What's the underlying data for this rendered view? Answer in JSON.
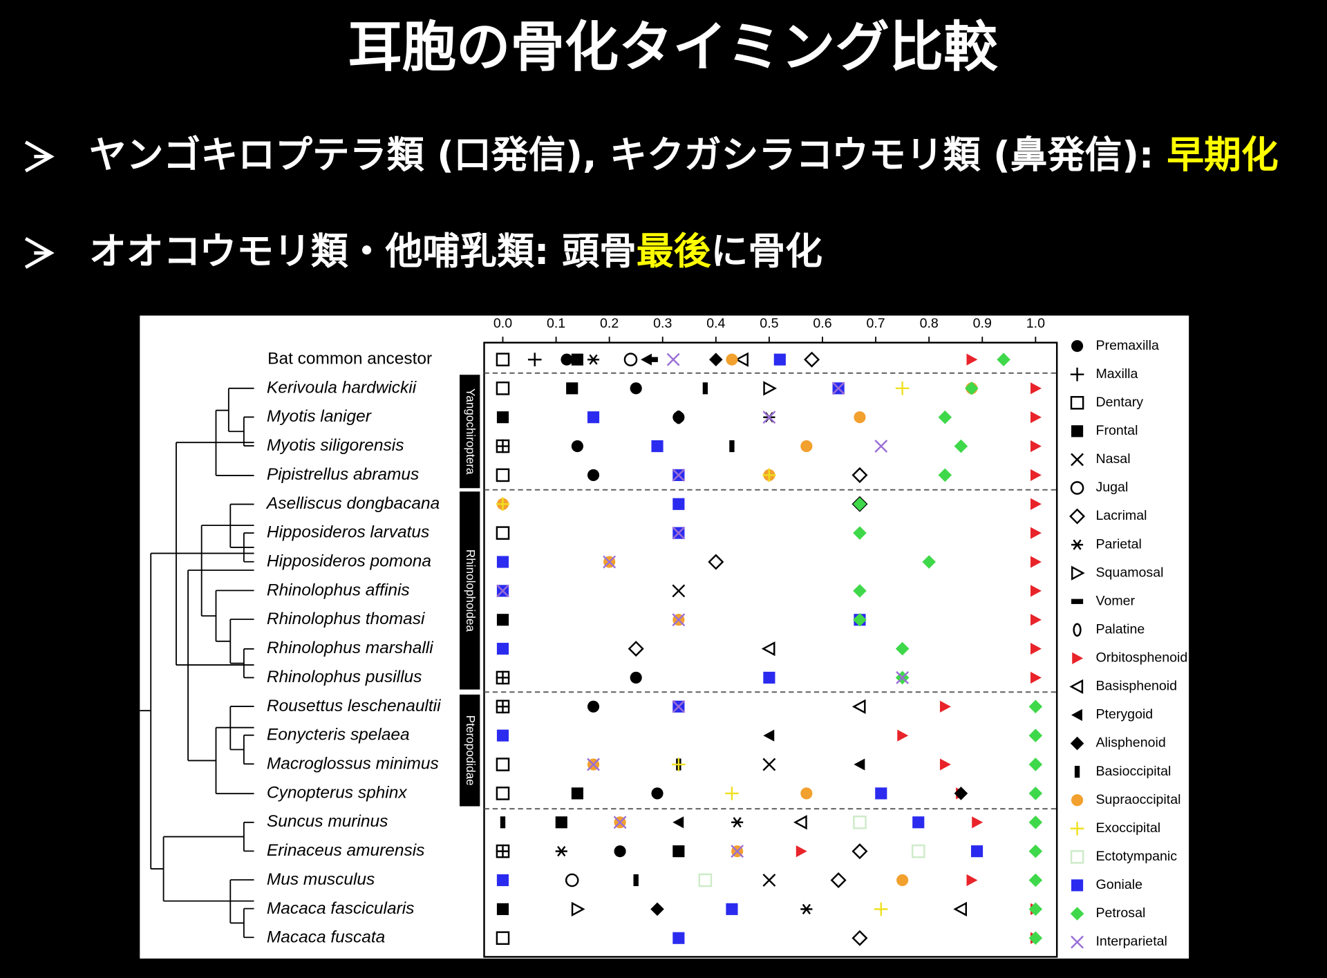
{
  "slide": {
    "title": "耳胞の骨化タイミング比較",
    "bullets": [
      [
        "ヤンゴキロプテラ類 (口発信), キクガシラコウモリ類 (鼻発信): ",
        "早期化"
      ],
      [
        "オオコウモリ類・他哺乳類: 頭骨",
        "最後",
        "に骨化"
      ]
    ]
  },
  "chart_data": {
    "type": "ossification-sequence",
    "categories": [
      "Bat common ancestor",
      "Kerivoula hardwickii",
      "Myotis laniger",
      "Myotis siligorensis",
      "Pipistrellus abramus",
      "Aselliscus dongbacana",
      "Hipposideros larvatus",
      "Hipposideros pomona",
      "Rhinolophus affinis",
      "Rhinolophus thomasi",
      "Rhinolophus marshalli",
      "Rhinolophus pusillus",
      "Rousettus leschenaultii",
      "Eonycteris spelaea",
      "Macroglossus minimus",
      "Cynopterus sphinx",
      "Suncus murinus",
      "Erinaceus amurensis",
      "Mus musculus",
      "Macaca fascicularis",
      "Macaca fuscata"
    ],
    "clades": [
      "Yangochiroptera",
      "Rhinolophoidea",
      "Pteropodidae"
    ],
    "xlim": [
      -0.035,
      1.04
    ],
    "xticks": [
      {
        "value": 0,
        "label": "0.0"
      },
      0.1,
      0.2,
      0.3,
      0.4,
      0.5,
      0.6,
      0.7,
      0.8,
      0.9,
      {
        "value": 1,
        "label": "1.0"
      }
    ],
    "series": [
      {
        "name": "Premaxilla",
        "marker": "circle",
        "color": "#000000",
        "values": [
          0.12,
          0.25,
          0.33,
          0.14,
          0.17,
          null,
          null,
          null,
          null,
          null,
          null,
          0.25,
          0.17,
          null,
          null,
          0.29,
          null,
          0.22,
          null,
          null,
          null
        ]
      },
      {
        "name": "Maxilla",
        "marker": "plus",
        "color": "#000000",
        "values": [
          0.06,
          null,
          null,
          0,
          null,
          null,
          null,
          null,
          null,
          null,
          null,
          0,
          0,
          null,
          null,
          null,
          null,
          0,
          null,
          null,
          null
        ]
      },
      {
        "name": "Dentary",
        "marker": "square-open",
        "color": "#000000",
        "values": [
          0,
          0,
          null,
          0,
          0,
          null,
          0,
          null,
          null,
          null,
          null,
          0,
          0,
          null,
          0,
          0,
          null,
          0,
          null,
          null,
          0
        ]
      },
      {
        "name": "Frontal",
        "marker": "square",
        "color": "#000000",
        "values": [
          0.14,
          0.13,
          0,
          null,
          null,
          null,
          null,
          null,
          null,
          0,
          null,
          null,
          null,
          null,
          null,
          0.14,
          0.11,
          0.33,
          null,
          0,
          null
        ]
      },
      {
        "name": "Nasal",
        "marker": "cross",
        "color": "#000000",
        "values": [
          null,
          null,
          null,
          null,
          null,
          null,
          null,
          null,
          0.33,
          null,
          null,
          null,
          null,
          null,
          0.5,
          null,
          null,
          null,
          0.5,
          null,
          null
        ]
      },
      {
        "name": "Jugal",
        "marker": "circle-open",
        "color": "#000000",
        "values": [
          0.24,
          null,
          null,
          null,
          null,
          null,
          null,
          null,
          null,
          null,
          null,
          null,
          null,
          null,
          null,
          null,
          null,
          null,
          0.13,
          null,
          null
        ]
      },
      {
        "name": "Lacrimal",
        "marker": "diamond-open",
        "color": "#000000",
        "values": [
          0.58,
          null,
          null,
          null,
          0.67,
          0.67,
          null,
          0.4,
          null,
          null,
          0.25,
          null,
          null,
          null,
          null,
          null,
          null,
          0.67,
          0.63,
          null,
          0.67
        ]
      },
      {
        "name": "Parietal",
        "marker": "asterisk",
        "color": "#000000",
        "values": [
          0.17,
          null,
          0.5,
          null,
          null,
          null,
          null,
          null,
          null,
          null,
          null,
          null,
          null,
          null,
          null,
          null,
          0.44,
          0.11,
          0,
          0.57,
          null
        ]
      },
      {
        "name": "Squamosal",
        "marker": "triangle-right-open",
        "color": "#000000",
        "values": [
          null,
          0.5,
          null,
          null,
          null,
          null,
          null,
          null,
          null,
          null,
          null,
          null,
          null,
          null,
          null,
          null,
          null,
          null,
          null,
          0.14,
          null
        ]
      },
      {
        "name": "Vomer",
        "marker": "dash",
        "color": "#000000",
        "values": [
          0.28,
          null,
          null,
          null,
          null,
          null,
          null,
          null,
          null,
          null,
          null,
          null,
          null,
          null,
          null,
          null,
          null,
          null,
          null,
          null,
          null
        ]
      },
      {
        "name": "Palatine",
        "marker": "ellipse-open",
        "color": "#000000",
        "values": [
          null,
          null,
          0.33,
          null,
          null,
          null,
          null,
          null,
          null,
          null,
          null,
          null,
          null,
          null,
          null,
          null,
          null,
          null,
          null,
          null,
          null
        ]
      },
      {
        "name": "Orbitosphenoid",
        "marker": "triangle-right",
        "color": "#e8242a",
        "values": [
          0.88,
          1,
          1,
          1,
          1,
          1,
          1,
          1,
          1,
          1,
          1,
          1,
          0.83,
          0.75,
          0.83,
          0.86,
          0.89,
          0.56,
          0.88,
          1,
          1
        ]
      },
      {
        "name": "Basisphenoid",
        "marker": "triangle-left-open",
        "color": "#000000",
        "values": [
          0.45,
          null,
          null,
          null,
          null,
          null,
          null,
          null,
          null,
          null,
          0.5,
          null,
          0.67,
          null,
          null,
          null,
          0.56,
          null,
          null,
          0.86,
          null
        ]
      },
      {
        "name": "Pterygoid",
        "marker": "triangle-left",
        "color": "#000000",
        "values": [
          0.27,
          null,
          null,
          null,
          null,
          null,
          null,
          null,
          null,
          null,
          null,
          null,
          null,
          0.5,
          0.67,
          null,
          0.33,
          null,
          null,
          null,
          null
        ]
      },
      {
        "name": "Alisphenoid",
        "marker": "diamond",
        "color": "#000000",
        "values": [
          0.4,
          null,
          null,
          null,
          null,
          null,
          null,
          null,
          null,
          null,
          null,
          null,
          null,
          null,
          null,
          0.86,
          null,
          null,
          null,
          0.29,
          null
        ]
      },
      {
        "name": "Basioccipital",
        "marker": "bar",
        "color": "#000000",
        "values": [
          null,
          0.38,
          null,
          0.43,
          null,
          null,
          null,
          null,
          null,
          null,
          null,
          null,
          null,
          null,
          0.33,
          null,
          0,
          null,
          0.25,
          null,
          null
        ]
      },
      {
        "name": "Supraoccipital",
        "marker": "circle",
        "color": "#f2a02e",
        "values": [
          0.43,
          0.88,
          0.67,
          0.57,
          0.5,
          0,
          null,
          0.2,
          null,
          0.33,
          null,
          null,
          null,
          null,
          0.17,
          0.57,
          0.22,
          0.44,
          0.75,
          null,
          null
        ]
      },
      {
        "name": "Exoccipital",
        "marker": "plus",
        "color": "#f0e020",
        "values": [
          null,
          0.75,
          null,
          null,
          0.5,
          0,
          null,
          null,
          null,
          null,
          null,
          null,
          null,
          null,
          0.33,
          0.43,
          null,
          null,
          null,
          0.71,
          null
        ]
      },
      {
        "name": "Ectotympanic",
        "marker": "square-open",
        "color": "#cdebc8",
        "values": [
          null,
          null,
          null,
          null,
          null,
          null,
          null,
          null,
          null,
          null,
          null,
          null,
          null,
          null,
          null,
          null,
          0.67,
          0.78,
          0.38,
          null,
          null
        ]
      },
      {
        "name": "Goniale",
        "marker": "square",
        "color": "#2b2bf0",
        "values": [
          0.52,
          0.63,
          0.17,
          0.29,
          0.33,
          0.33,
          0.33,
          0,
          0,
          0.67,
          0,
          0.5,
          0.33,
          0,
          null,
          0.71,
          0.78,
          0.89,
          0,
          0.43,
          0.33
        ]
      },
      {
        "name": "Petrosal",
        "marker": "diamond",
        "color": "#3fd84a",
        "values": [
          0.94,
          0.88,
          0.83,
          0.86,
          0.83,
          0.67,
          0.67,
          0.8,
          0.67,
          0.67,
          0.75,
          0.75,
          1,
          1,
          1,
          1,
          1,
          1,
          1,
          1,
          1
        ]
      },
      {
        "name": "Interparietal",
        "marker": "cross",
        "color": "#9b6fd6",
        "values": [
          0.32,
          0.63,
          0.5,
          0.71,
          0.33,
          null,
          0.33,
          0.2,
          0,
          0.33,
          null,
          0.75,
          0.33,
          null,
          0.17,
          null,
          0.22,
          0.44,
          null,
          null,
          null
        ]
      }
    ]
  }
}
